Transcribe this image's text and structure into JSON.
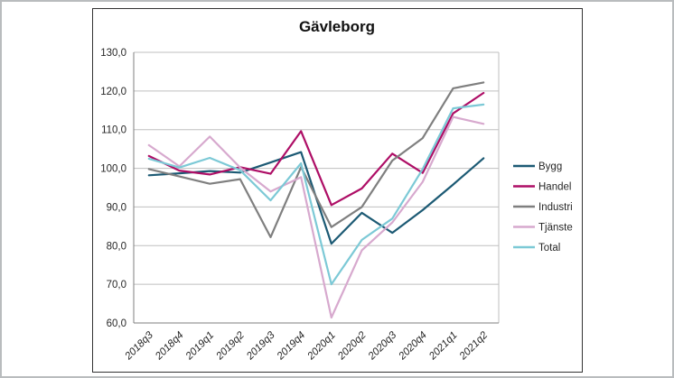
{
  "chart_data": {
    "type": "line",
    "title": "Gävleborg",
    "xlabel": "",
    "ylabel": "",
    "ylim": [
      60,
      130
    ],
    "ytick_step": 10,
    "ytick_values": [
      130,
      120,
      110,
      100,
      90,
      80,
      70,
      60
    ],
    "ytick_labels": [
      "130,0",
      "120,0",
      "110,0",
      "100,0",
      "90,0",
      "80,0",
      "70,0",
      "60,0"
    ],
    "grid": true,
    "legend_position": "right",
    "categories": [
      "2018q3",
      "2018q4",
      "2019q1",
      "2019q2",
      "2019q3",
      "2019q4",
      "2020q1",
      "2020q2",
      "2020q3",
      "2020q4",
      "2021q1",
      "2021q2"
    ],
    "series": [
      {
        "name": "Bygg",
        "color": "#1c5a74",
        "values": [
          98.2,
          98.7,
          99.3,
          98.9,
          101.5,
          104.2,
          80.5,
          88.5,
          83.3,
          89.2,
          95.8,
          102.6
        ]
      },
      {
        "name": "Handel",
        "color": "#ae0e66",
        "values": [
          103.2,
          99.4,
          98.4,
          100.3,
          98.6,
          109.6,
          90.5,
          94.8,
          103.8,
          98.8,
          114.2,
          119.5
        ]
      },
      {
        "name": "Industri",
        "color": "#7f7f7f",
        "values": [
          99.8,
          97.9,
          96.0,
          97.2,
          82.2,
          100.3,
          84.8,
          90.0,
          102.0,
          107.8,
          120.7,
          122.2
        ]
      },
      {
        "name": "Tjänste",
        "color": "#d7a9ce",
        "values": [
          106.0,
          100.5,
          108.2,
          100.2,
          94.0,
          97.7,
          61.4,
          78.8,
          86.0,
          96.5,
          113.3,
          111.5
        ]
      },
      {
        "name": "Total",
        "color": "#7cc9d6",
        "values": [
          102.5,
          100.2,
          102.7,
          99.5,
          91.7,
          101.3,
          70.0,
          81.5,
          87.0,
          99.8,
          115.5,
          116.5
        ]
      }
    ],
    "colors": {
      "gridline": "#bfbfbf",
      "axis": "#7f7f7f",
      "chart_border": "#333333",
      "background": "#ffffff"
    }
  }
}
